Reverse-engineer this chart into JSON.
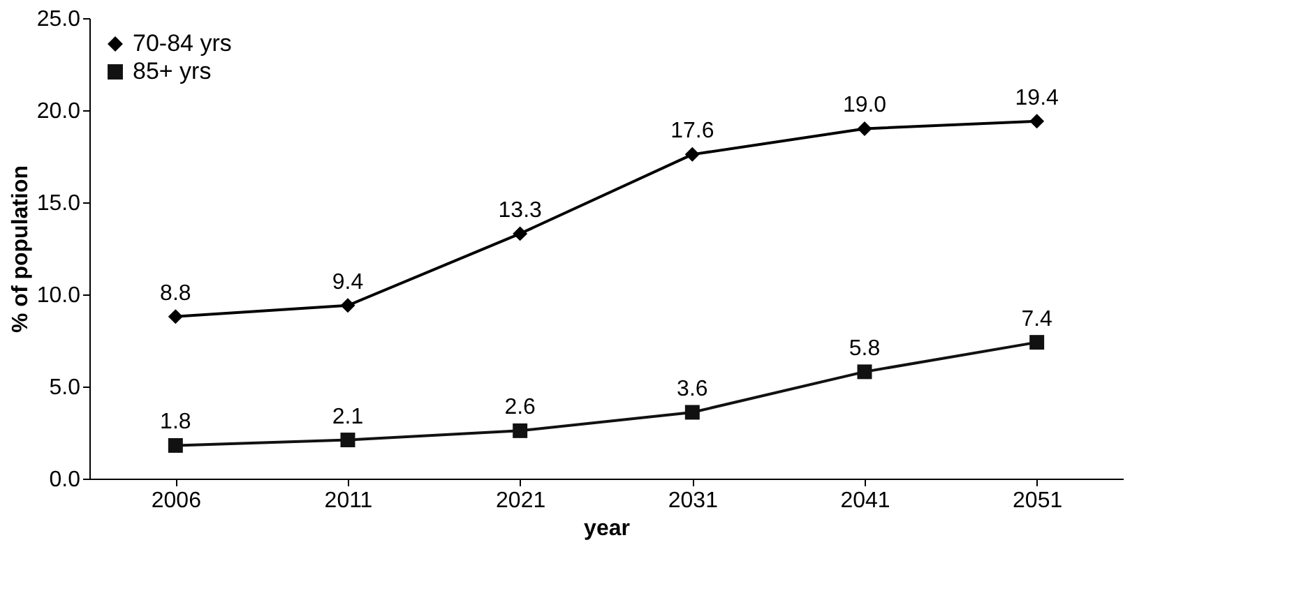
{
  "chart_data": {
    "type": "line",
    "xlabel": "year",
    "ylabel": "% of population",
    "categories": [
      "2006",
      "2011",
      "2021",
      "2031",
      "2041",
      "2051"
    ],
    "series": [
      {
        "name": "70-84 yrs",
        "color": "#000000",
        "marker": "diamond",
        "values": [
          8.8,
          9.4,
          13.3,
          17.6,
          19.0,
          19.4
        ],
        "value_labels": [
          "8.8",
          "9.4",
          "13.3",
          "17.6",
          "19.0",
          "19.4"
        ]
      },
      {
        "name": "85+ yrs",
        "color": "#111111",
        "marker": "square",
        "values": [
          1.8,
          2.1,
          2.6,
          3.6,
          5.8,
          7.4
        ],
        "value_labels": [
          "1.8",
          "2.1",
          "2.6",
          "3.6",
          "5.8",
          "7.4"
        ]
      }
    ],
    "ylim": [
      0,
      25
    ],
    "yticks": [
      {
        "value": 0,
        "label": "0.0"
      },
      {
        "value": 5,
        "label": "5.0"
      },
      {
        "value": 10,
        "label": "10.0"
      },
      {
        "value": 15,
        "label": "15.0"
      },
      {
        "value": 20,
        "label": "20.0"
      },
      {
        "value": 25,
        "label": "25.0"
      }
    ],
    "grid": false,
    "legend": "top left",
    "line_style": "solid"
  }
}
